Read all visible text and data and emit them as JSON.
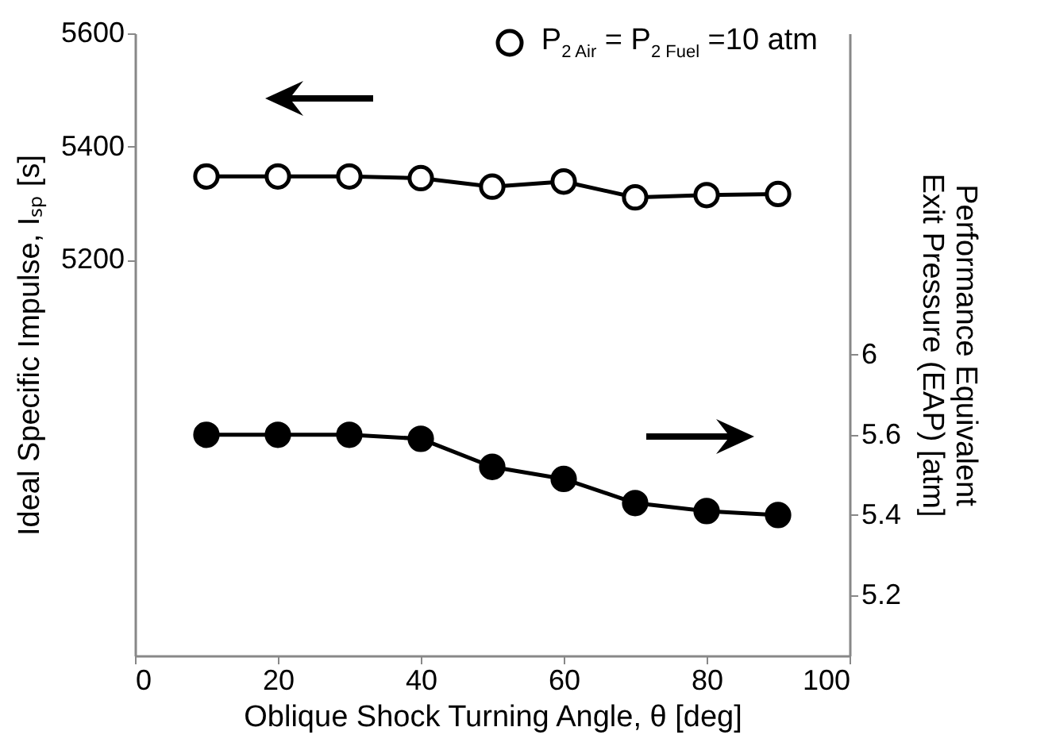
{
  "chart_data": {
    "type": "line",
    "xlabel": "Oblique Shock Turning Angle, θ [deg]",
    "ylabel": "Ideal Specific Impulse, Iₛₚ [s]",
    "y2label": "Performance Equivalent\nExit Pressure (EAP) [atm]",
    "x": [
      10,
      20,
      30,
      40,
      50,
      60,
      70,
      80,
      90
    ],
    "series": [
      {
        "name": "P$_{2 Air}$ = P$_{2 Fuel}$ =10 atm",
        "color": "#000000",
        "axis": "y",
        "values": [
          5347,
          5347,
          5347,
          5344,
          5329,
          5338,
          5310,
          5314,
          5316
        ]
      },
      {
        "color": "#000000",
        "axis": "y2",
        "values": [
          5.6,
          5.6,
          5.6,
          5.59,
          5.52,
          5.49,
          5.43,
          5.41,
          5.4
        ]
      }
    ],
    "xlim": [
      0,
      100
    ],
    "xticks": [
      0,
      20,
      40,
      60,
      80,
      100
    ],
    "ylim": [
      4500,
      5600
    ],
    "yticks": [
      5200,
      5400,
      5600
    ],
    "y2lim": [
      5.05,
      6.6
    ],
    "y2ticks": [
      5.2,
      5.4,
      5.6,
      {
        "value": 5.8,
        "label": "6"
      }
    ],
    "legend": "top right",
    "marker": "circle",
    "line_style": "solid"
  }
}
